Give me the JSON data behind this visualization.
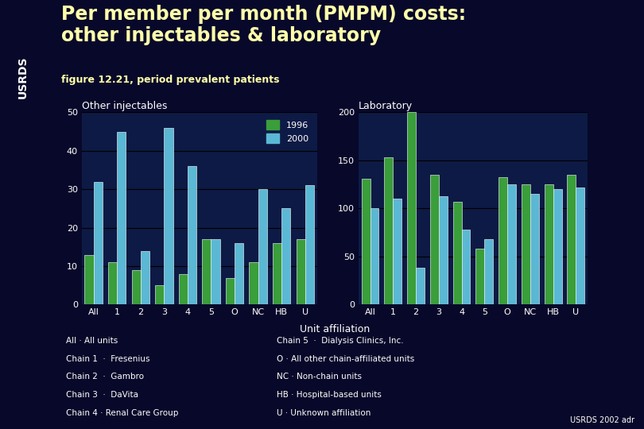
{
  "title_line1": "Per member per month (PMPM) costs:",
  "title_line2": "other injectables & laboratory",
  "subtitle": "figure 12.21, period prevalent patients",
  "categories": [
    "All",
    "1",
    "2",
    "3",
    "4",
    "5",
    "O",
    "NC",
    "HB",
    "U"
  ],
  "injectables_1996": [
    13,
    11,
    9,
    5,
    8,
    17,
    7,
    11,
    16,
    17
  ],
  "injectables_2000": [
    32,
    45,
    14,
    46,
    36,
    17,
    16,
    30,
    25,
    31
  ],
  "laboratory_1996": [
    131,
    153,
    200,
    135,
    107,
    58,
    133,
    125,
    125,
    135
  ],
  "laboratory_2000": [
    100,
    110,
    38,
    113,
    78,
    68,
    125,
    115,
    120,
    122
  ],
  "color_1996": "#3a9e3a",
  "color_2000": "#5bb8d4",
  "bg_color": "#08082a",
  "plot_bg_color": "#0d1a45",
  "text_color": "#ffffff",
  "title_color": "#ffffaa",
  "subtitle_color": "#ffffaa",
  "sidebar_color": "#1a5c1a",
  "green_line_color": "#00aa00",
  "injectables_ylim": [
    0,
    50
  ],
  "laboratory_ylim": [
    0,
    200
  ],
  "injectables_yticks": [
    0,
    10,
    20,
    30,
    40,
    50
  ],
  "laboratory_yticks": [
    0,
    50,
    100,
    150,
    200
  ],
  "xlabel": "Unit affiliation",
  "footnote_col1": [
    "All · All units",
    "Chain 1  ·  Fresenius",
    "Chain 2  ·  Gambro",
    "Chain 3  ·  DaVita",
    "Chain 4 · Renal Care Group"
  ],
  "footnote_col2": [
    "Chain 5  ·  Dialysis Clinics, Inc.",
    "O · All other chain-affiliated units",
    "NC · Non-chain units",
    "HB · Hospital-based units",
    "U · Unknown affiliation"
  ],
  "credit": "USRDS 2002 adr"
}
